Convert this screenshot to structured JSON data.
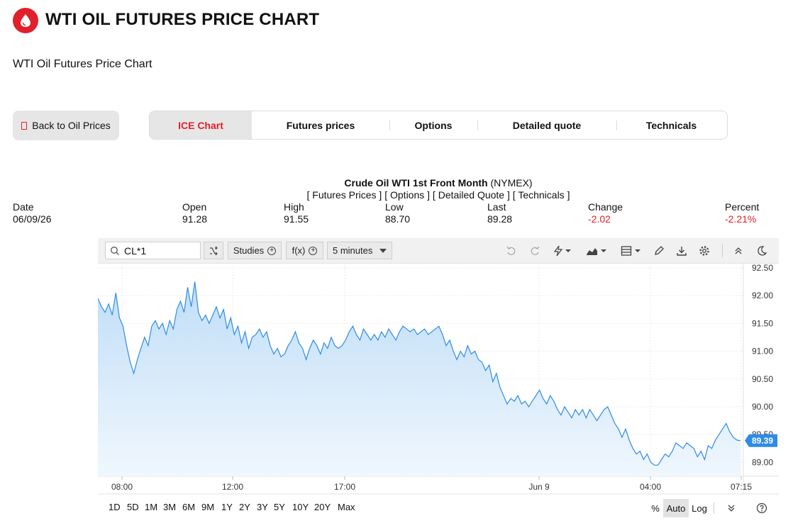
{
  "header": {
    "title": "WTI OIL FUTURES PRICE CHART",
    "subtitle": "WTI Oil Futures Price Chart",
    "logo_icon": "oil-drop-icon",
    "brand_color": "#e0202a"
  },
  "nav": {
    "back_label": "Back to Oil Prices",
    "tabs": [
      {
        "label": "ICE Chart",
        "active": true
      },
      {
        "label": "Futures prices",
        "active": false
      },
      {
        "label": "Options",
        "active": false
      },
      {
        "label": "Detailed quote",
        "active": false
      },
      {
        "label": "Technicals",
        "active": false
      }
    ]
  },
  "quote": {
    "name_bold": "Crude Oil WTI 1st Front Month",
    "exchange": " (NYMEX)",
    "links": [
      "Futures Prices",
      "Options",
      "Detailed Quote",
      "Technicals"
    ],
    "labels": {
      "date": "Date",
      "open": "Open",
      "high": "High",
      "low": "Low",
      "last": "Last",
      "change": "Change",
      "percent": "Percent"
    },
    "values": {
      "date": "06/09/26",
      "open": "91.28",
      "high": "91.55",
      "low": "88.70",
      "last": "89.28",
      "change": "-2.02",
      "percent": "-2.21%"
    },
    "negative_color": "#e0202a"
  },
  "toolbar": {
    "symbol": "CL*1",
    "studies_label": "Studies",
    "fx_label": "f(x)",
    "interval": "5 minutes",
    "icons": [
      "search-icon",
      "compare-icon",
      "undo-icon",
      "redo-icon",
      "lightning-icon",
      "chart-type-icon",
      "layout-icon",
      "pencil-icon",
      "download-icon",
      "gear-icon",
      "collapse-icon",
      "dark-mode-icon"
    ]
  },
  "chart_data": {
    "type": "area",
    "title": "",
    "xlabel": "",
    "ylabel": "",
    "x_ticks": [
      "08:00",
      "12:00",
      "17:00",
      "Jun 9",
      "04:00",
      "07:15"
    ],
    "y_ticks": [
      "92.50",
      "92.00",
      "91.50",
      "91.00",
      "90.50",
      "90.00",
      "89.50",
      "89.00"
    ],
    "ylim": [
      88.75,
      92.55
    ],
    "last_price_label": "89.39",
    "line_color": "#2f8be6",
    "grid": true,
    "series": [
      {
        "values": [
          91.95,
          91.8,
          91.7,
          91.85,
          91.65,
          92.05,
          91.6,
          91.45,
          91.1,
          90.8,
          90.6,
          90.85,
          91.05,
          91.25,
          91.1,
          91.45,
          91.55,
          91.4,
          91.5,
          91.3,
          91.55,
          91.4,
          91.75,
          91.9,
          91.7,
          92.15,
          91.8,
          92.25,
          91.7,
          91.55,
          91.65,
          91.5,
          91.65,
          91.8,
          91.6,
          91.75,
          91.4,
          91.6,
          91.3,
          91.45,
          91.15,
          91.35,
          91.05,
          91.25,
          91.3,
          91.4,
          91.25,
          91.35,
          91.1,
          90.95,
          91.05,
          90.9,
          90.95,
          91.1,
          91.2,
          91.35,
          91.15,
          91.05,
          90.85,
          91.05,
          91.2,
          91.1,
          90.95,
          91.15,
          91.05,
          91.25,
          91.1,
          91.05,
          91.1,
          91.2,
          91.35,
          91.45,
          91.3,
          91.2,
          91.4,
          91.3,
          91.2,
          91.3,
          91.2,
          91.35,
          91.25,
          91.4,
          91.3,
          91.2,
          91.35,
          91.45,
          91.4,
          91.35,
          91.4,
          91.3,
          91.35,
          91.4,
          91.3,
          91.35,
          91.4,
          91.45,
          91.3,
          91.1,
          91.2,
          91.0,
          90.85,
          91.0,
          90.9,
          91.1,
          90.95,
          91.0,
          90.85,
          90.8,
          90.65,
          90.75,
          90.45,
          90.6,
          90.35,
          90.2,
          90.05,
          90.15,
          90.1,
          90.2,
          90.05,
          90.1,
          90.0,
          90.1,
          90.2,
          90.3,
          90.15,
          90.05,
          90.2,
          90.1,
          89.95,
          89.85,
          90.0,
          89.9,
          89.8,
          89.95,
          89.85,
          89.95,
          89.8,
          89.95,
          89.85,
          89.75,
          89.85,
          89.95,
          90.0,
          89.85,
          89.7,
          89.6,
          89.45,
          89.6,
          89.4,
          89.25,
          89.15,
          89.2,
          89.05,
          89.15,
          89.0,
          88.95,
          88.95,
          89.05,
          89.15,
          89.1,
          89.2,
          89.35,
          89.3,
          89.25,
          89.35,
          89.3,
          89.25,
          89.1,
          89.2,
          89.05,
          89.3,
          89.25,
          89.4,
          89.5,
          89.6,
          89.7,
          89.55,
          89.45,
          89.4,
          89.39
        ]
      }
    ]
  },
  "ranges": {
    "periods": [
      "1D",
      "5D",
      "1M",
      "3M",
      "6M",
      "9M",
      "1Y",
      "2Y",
      "3Y",
      "5Y",
      "10Y",
      "20Y",
      "Max"
    ],
    "percent_label": "%",
    "auto_label": "Auto",
    "log_label": "Log"
  }
}
